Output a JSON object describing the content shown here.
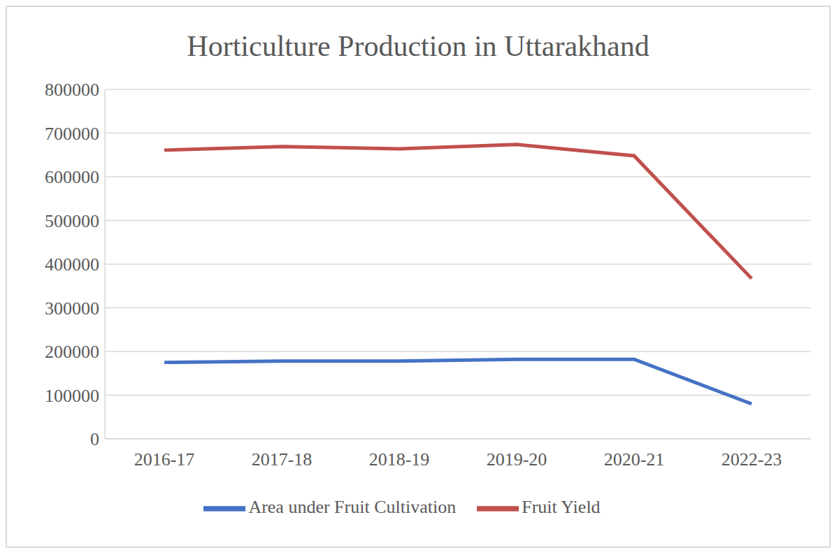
{
  "chart_data": {
    "type": "line",
    "title": "Horticulture Production in Uttarakhand",
    "categories": [
      "2016-17",
      "2017-18",
      "2018-19",
      "2019-20",
      "2020-21",
      "2022-23"
    ],
    "series": [
      {
        "name": "Area under Fruit Cultivation",
        "color": "#4472c4",
        "values": [
          175000,
          178000,
          178000,
          182000,
          182000,
          80000
        ]
      },
      {
        "name": "Fruit Yield",
        "color": "#c0504d",
        "values": [
          661000,
          669000,
          664000,
          674000,
          648000,
          367000
        ]
      }
    ],
    "ylim": [
      0,
      800000
    ],
    "yticks": [
      0,
      100000,
      200000,
      300000,
      400000,
      500000,
      600000,
      700000,
      800000
    ],
    "grid": true,
    "legend": "bottom",
    "marker": "none"
  }
}
